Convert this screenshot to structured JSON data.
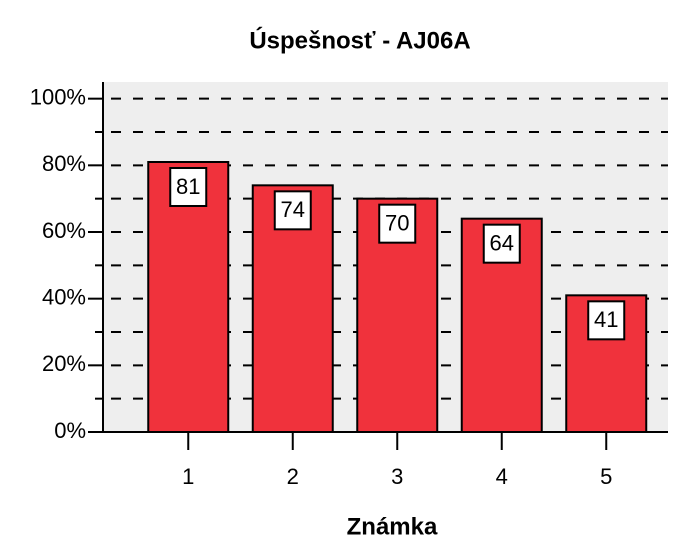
{
  "chart_data": {
    "type": "bar",
    "title": "Úspešnosť - AJ06A",
    "x_label": "Známka",
    "categories": [
      "1",
      "2",
      "3",
      "4",
      "5"
    ],
    "values": [
      81,
      74,
      70,
      64,
      41
    ],
    "color": "#f0323c",
    "ylim": [
      0,
      105
    ],
    "yticks": [
      {
        "value": 0,
        "label": "0%"
      },
      {
        "value": 20,
        "label": "20%"
      },
      {
        "value": 40,
        "label": "40%"
      },
      {
        "value": 60,
        "label": "60%"
      },
      {
        "value": 80,
        "label": "80%"
      },
      {
        "value": 100,
        "label": "100%"
      }
    ],
    "yminor_ticks": [
      10,
      30,
      50,
      70,
      90
    ],
    "grid": true
  }
}
